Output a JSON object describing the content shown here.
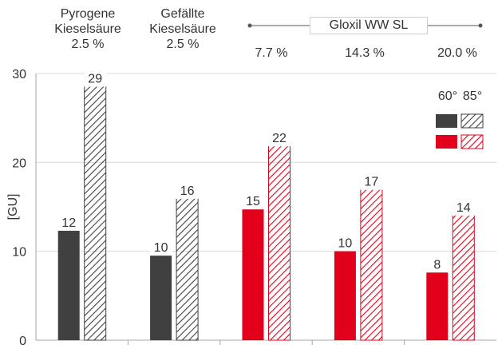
{
  "header": {
    "columns": [
      {
        "line1": "Pyrogene",
        "line2": "Kieselsäure",
        "pct": "2.5 %"
      },
      {
        "line1": "Gefällte",
        "line2": "Kieselsäure",
        "pct": "2.5 %"
      },
      {
        "pct": "7.7 %"
      },
      {
        "pct": "14.3 %"
      },
      {
        "pct": "20.0 %"
      }
    ],
    "group_label": "Gloxil  WW SL"
  },
  "chart_data": {
    "type": "bar",
    "ylabel": "[GU]",
    "ylim": [
      0,
      30
    ],
    "yticks": [
      0,
      10,
      20,
      30
    ],
    "categories": [
      "Pyrogene Kieselsäure 2.5 %",
      "Gefällte Kieselsäure 2.5 %",
      "Gloxil WW SL 7.7 %",
      "Gloxil WW SL 14.3 %",
      "Gloxil WW SL 20.0 %"
    ],
    "series": [
      {
        "name": "60°",
        "values": [
          12.4,
          9.6,
          14.8,
          10.1,
          7.7
        ],
        "labels": [
          "12",
          "10",
          "15",
          "10",
          "8"
        ],
        "fill": "solid"
      },
      {
        "name": "85°",
        "values": [
          28.6,
          16.0,
          21.9,
          17.0,
          14.1
        ],
        "labels": [
          "29",
          "16",
          "22",
          "17",
          "14"
        ],
        "fill": "hatched"
      }
    ],
    "bar_colors": [
      "#404040",
      "#404040",
      "#e2001a",
      "#e2001a",
      "#e2001a"
    ],
    "grid": true,
    "legend_position": "top-right"
  },
  "colors": {
    "dark": "#404040",
    "red": "#e2001a",
    "grid": "#d9d9d9",
    "axis": "#a6a6a6"
  }
}
